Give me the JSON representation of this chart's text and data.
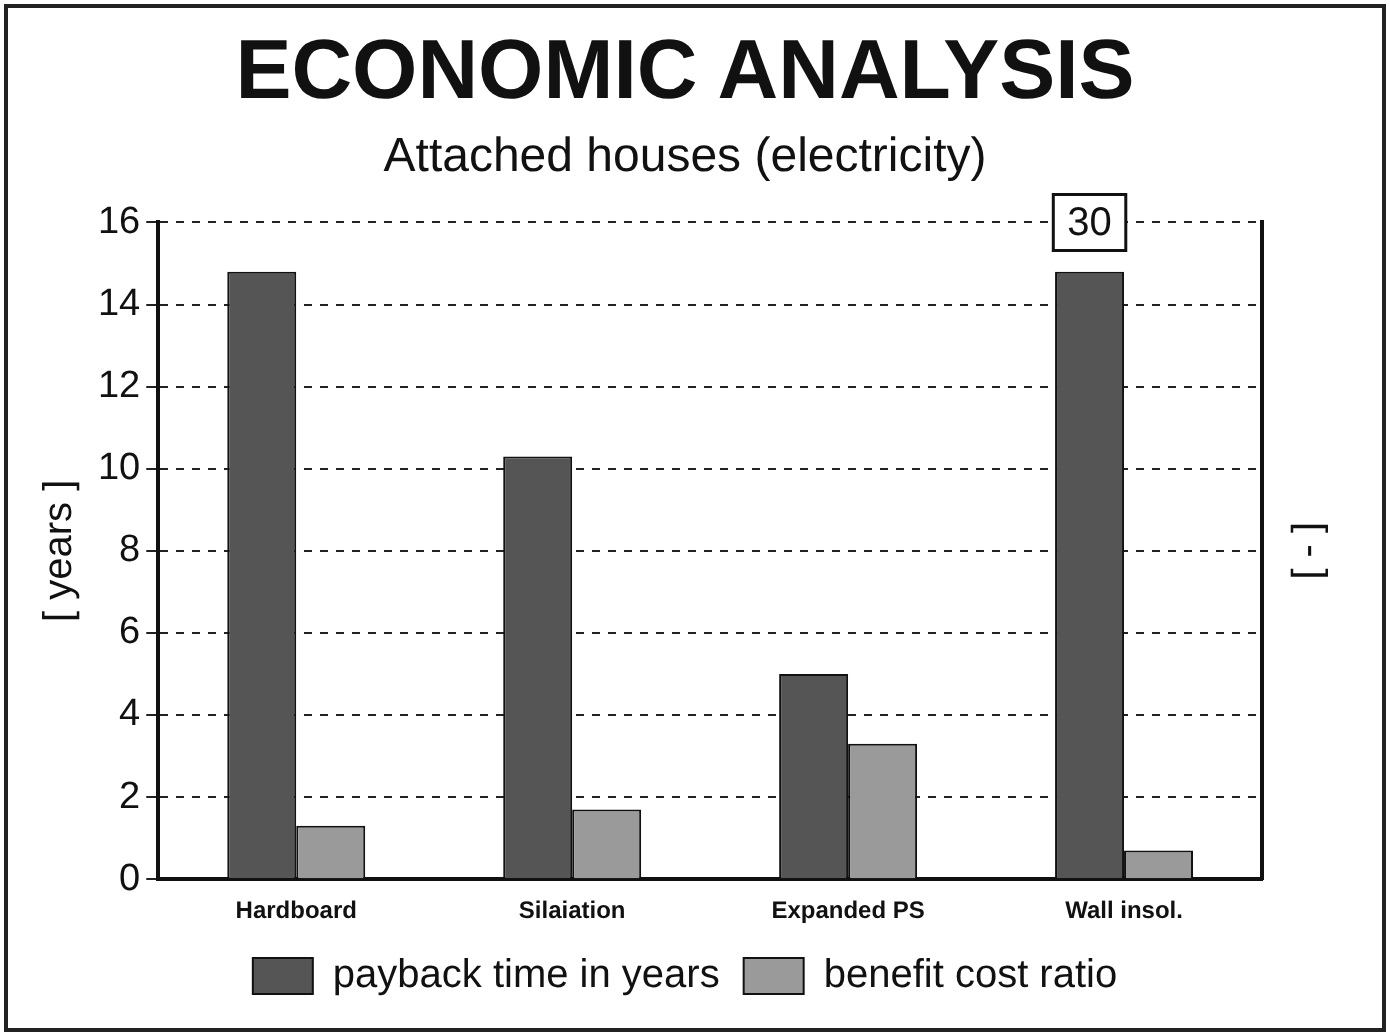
{
  "chart_data": {
    "type": "bar",
    "title": "ECONOMIC ANALYSIS",
    "subtitle": "Attached houses (electricity)",
    "ylabel": "[ years ]",
    "y2label": "[ - ]",
    "categories": [
      "Hardboard",
      "Silaiation",
      "Expanded PS",
      "Wall insol."
    ],
    "series": [
      {
        "name": "payback time in years",
        "color": "#555555",
        "values": [
          14.8,
          10.3,
          5.0,
          14.8
        ]
      },
      {
        "name": "benefit cost ratio",
        "color": "#9a9a9a",
        "values": [
          1.3,
          1.7,
          3.3,
          0.7
        ]
      }
    ],
    "ylim": [
      0,
      16
    ],
    "yticks": [
      0,
      2,
      4,
      6,
      8,
      10,
      12,
      14,
      16
    ],
    "grid": "y",
    "legend": "bottom",
    "annotations": [
      "30"
    ]
  }
}
